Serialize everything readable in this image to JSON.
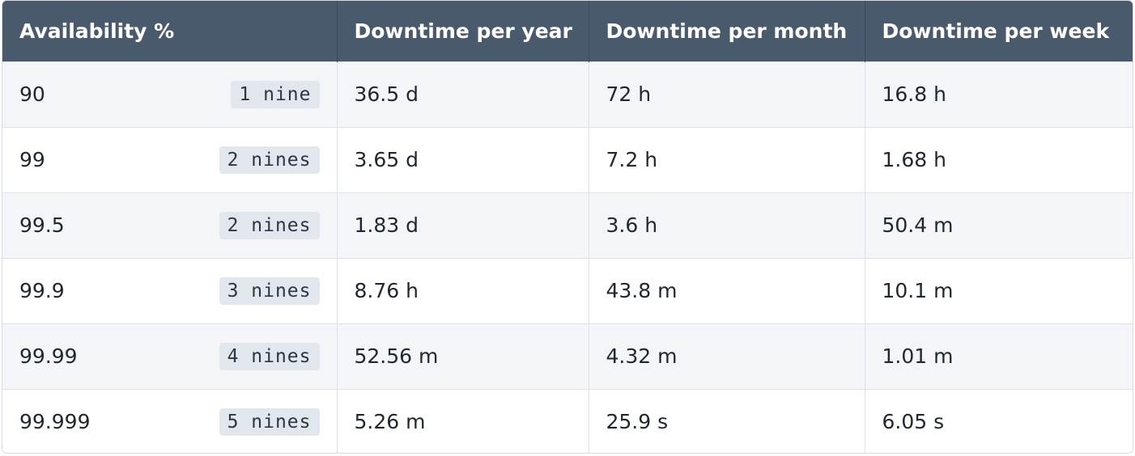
{
  "table": {
    "headers": [
      "Availability %",
      "Downtime per year",
      "Downtime per month",
      "Downtime per week"
    ],
    "rows": [
      {
        "availability": "90",
        "nines": "1 nine",
        "year": "36.5 d",
        "month": "72 h",
        "week": "16.8 h"
      },
      {
        "availability": "99",
        "nines": "2 nines",
        "year": "3.65 d",
        "month": "7.2 h",
        "week": "1.68 h"
      },
      {
        "availability": "99.5",
        "nines": "2 nines",
        "year": "1.83 d",
        "month": "3.6 h",
        "week": "50.4 m"
      },
      {
        "availability": "99.9",
        "nines": "3 nines",
        "year": "8.76 h",
        "month": "43.8 m",
        "week": "10.1 m"
      },
      {
        "availability": "99.99",
        "nines": "4 nines",
        "year": "52.56 m",
        "month": "4.32 m",
        "week": "1.01 m"
      },
      {
        "availability": "99.999",
        "nines": "5 nines",
        "year": "5.26 m",
        "month": "25.9 s",
        "week": "6.05 s"
      }
    ]
  },
  "colors": {
    "header_bg": "#4a5a6d",
    "header_text": "#ffffff",
    "row_odd": "#f3f5f8",
    "row_even": "#ffffff",
    "badge_bg": "#e2e7ee",
    "border": "#dde2e9"
  }
}
